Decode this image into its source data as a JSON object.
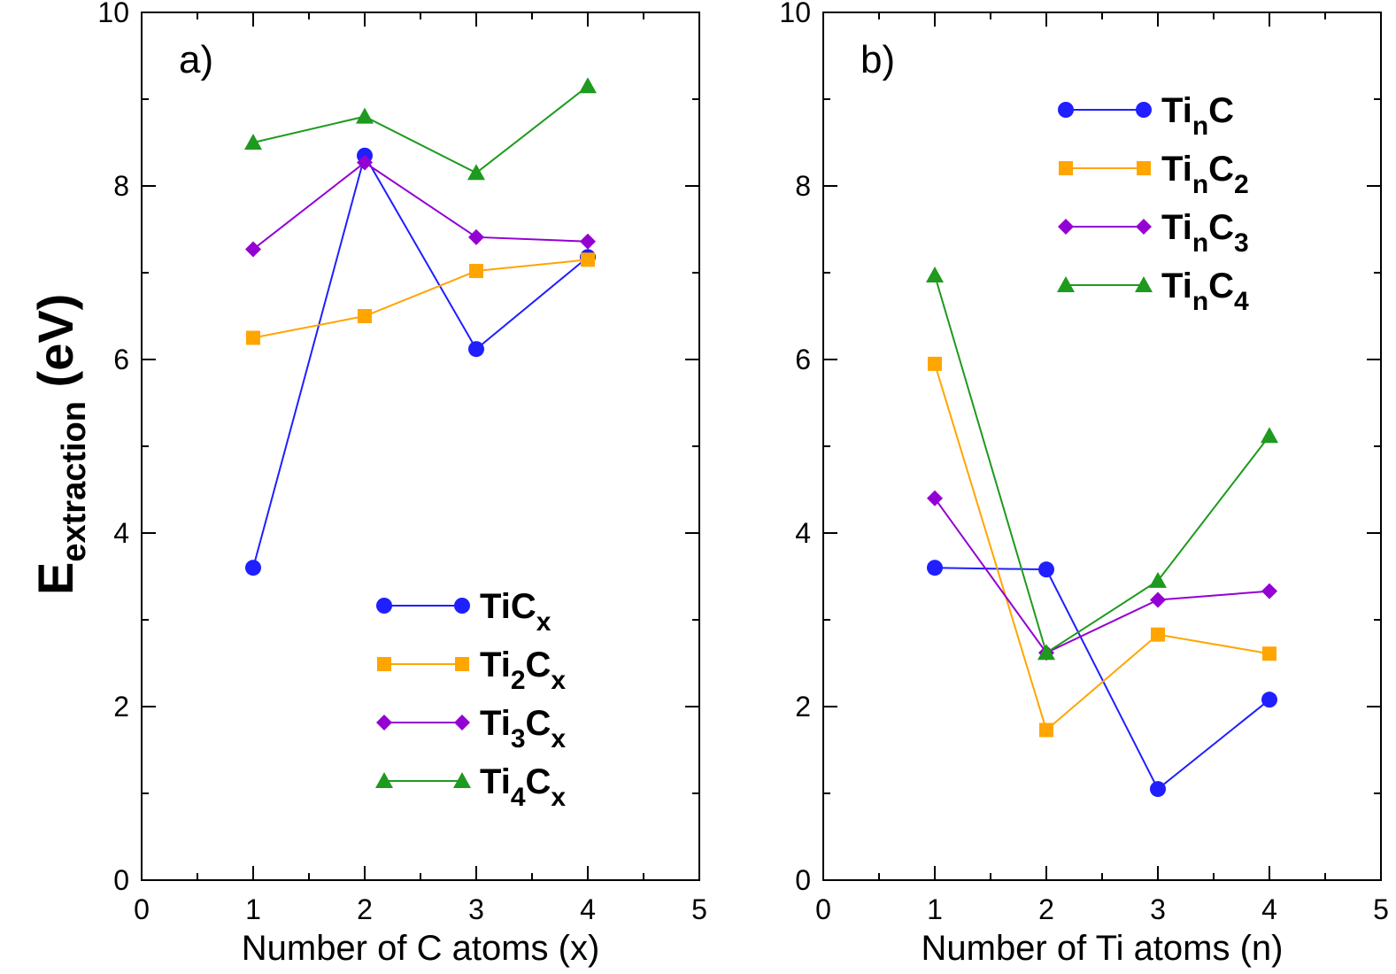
{
  "ylabel_main": "E",
  "ylabel_sub": "extraction",
  "ylabel_unit": " (eV)",
  "chart_data": [
    {
      "type": "line",
      "panel_label": "a)",
      "xlabel": "Number of C atoms (x)",
      "xlim": [
        0,
        5
      ],
      "ylim": [
        0,
        10
      ],
      "xticks": [
        "0",
        "1",
        "2",
        "3",
        "4",
        "5"
      ],
      "yticks": [
        "0",
        "2",
        "4",
        "6",
        "8",
        "10"
      ],
      "legend_position": "bottom-right",
      "series": [
        {
          "name": "TiCx",
          "label_parts": [
            {
              "t": "TiC",
              "s": ""
            },
            {
              "t": "x",
              "s": "sub"
            }
          ],
          "color": "#1f1fff",
          "marker": "circle",
          "x": [
            1,
            2,
            3,
            4
          ],
          "values": [
            3.6,
            8.35,
            6.12,
            7.18
          ]
        },
        {
          "name": "Ti2Cx",
          "label_parts": [
            {
              "t": "Ti",
              "s": ""
            },
            {
              "t": "2",
              "s": "sub"
            },
            {
              "t": "C",
              "s": ""
            },
            {
              "t": "x",
              "s": "sub"
            }
          ],
          "color": "#ffa500",
          "marker": "square",
          "x": [
            1,
            2,
            3,
            4
          ],
          "values": [
            6.25,
            6.5,
            7.02,
            7.15
          ]
        },
        {
          "name": "Ti3Cx",
          "label_parts": [
            {
              "t": "Ti",
              "s": ""
            },
            {
              "t": "3",
              "s": "sub"
            },
            {
              "t": "C",
              "s": ""
            },
            {
              "t": "x",
              "s": "sub"
            }
          ],
          "color": "#9400d3",
          "marker": "diamond",
          "x": [
            1,
            2,
            3,
            4
          ],
          "values": [
            7.27,
            8.27,
            7.41,
            7.36
          ]
        },
        {
          "name": "Ti4Cx",
          "label_parts": [
            {
              "t": "Ti",
              "s": ""
            },
            {
              "t": "4",
              "s": "sub"
            },
            {
              "t": "C",
              "s": ""
            },
            {
              "t": "x",
              "s": "sub"
            }
          ],
          "color": "#1e9a1e",
          "marker": "triangle",
          "x": [
            1,
            2,
            3,
            4
          ],
          "values": [
            8.5,
            8.8,
            8.15,
            9.15
          ]
        }
      ]
    },
    {
      "type": "line",
      "panel_label": "b)",
      "xlabel": "Number of Ti atoms (n)",
      "xlim": [
        0,
        5
      ],
      "ylim": [
        0,
        10
      ],
      "xticks": [
        "0",
        "1",
        "2",
        "3",
        "4",
        "5"
      ],
      "yticks": [
        "0",
        "2",
        "4",
        "6",
        "8",
        "10"
      ],
      "legend_position": "top-right",
      "series": [
        {
          "name": "TinC",
          "label_parts": [
            {
              "t": "Ti",
              "s": ""
            },
            {
              "t": "n",
              "s": "sub"
            },
            {
              "t": "C",
              "s": ""
            }
          ],
          "color": "#1f1fff",
          "marker": "circle",
          "x": [
            1,
            2,
            3,
            4
          ],
          "values": [
            3.6,
            3.58,
            1.05,
            2.08
          ]
        },
        {
          "name": "TinC2",
          "label_parts": [
            {
              "t": "Ti",
              "s": ""
            },
            {
              "t": "n",
              "s": "sub"
            },
            {
              "t": "C",
              "s": ""
            },
            {
              "t": "2",
              "s": "sub"
            }
          ],
          "color": "#ffa500",
          "marker": "square",
          "x": [
            1,
            2,
            3,
            4
          ],
          "values": [
            5.95,
            1.73,
            2.83,
            2.61
          ]
        },
        {
          "name": "TinC3",
          "label_parts": [
            {
              "t": "Ti",
              "s": ""
            },
            {
              "t": "n",
              "s": "sub"
            },
            {
              "t": "C",
              "s": ""
            },
            {
              "t": "3",
              "s": "sub"
            }
          ],
          "color": "#9400d3",
          "marker": "diamond",
          "x": [
            1,
            2,
            3,
            4
          ],
          "values": [
            4.4,
            2.62,
            3.23,
            3.33
          ]
        },
        {
          "name": "TinC4",
          "label_parts": [
            {
              "t": "Ti",
              "s": ""
            },
            {
              "t": "n",
              "s": "sub"
            },
            {
              "t": "C",
              "s": ""
            },
            {
              "t": "4",
              "s": "sub"
            }
          ],
          "color": "#1e9a1e",
          "marker": "triangle",
          "x": [
            1,
            2,
            3,
            4
          ],
          "values": [
            6.97,
            2.62,
            3.45,
            5.12
          ]
        }
      ]
    }
  ]
}
